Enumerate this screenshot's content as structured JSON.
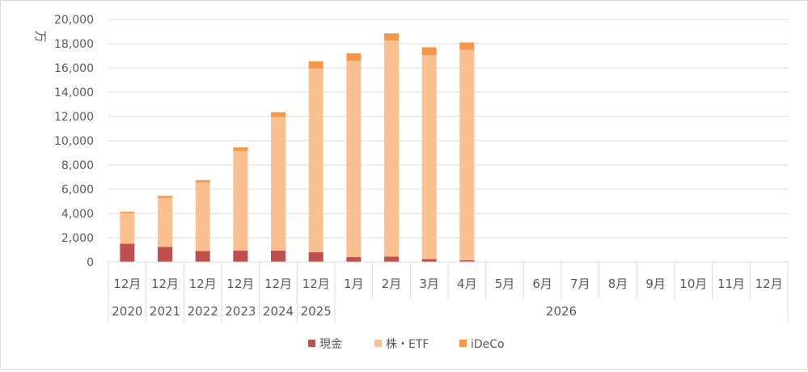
{
  "chart_data": {
    "type": "bar",
    "stacked": true,
    "title": "",
    "ylabel": "万",
    "xlabel": "",
    "ylim": [
      0,
      20000
    ],
    "yticks": [
      0,
      2000,
      4000,
      6000,
      8000,
      10000,
      12000,
      14000,
      16000,
      18000,
      20000
    ],
    "ytick_labels": [
      "0",
      "2,000",
      "4,000",
      "6,000",
      "8,000",
      "10,000",
      "12,000",
      "14,000",
      "16,000",
      "18,000",
      "20,000"
    ],
    "grid": true,
    "legend_position": "bottom",
    "categories": [
      "12月",
      "12月",
      "12月",
      "12月",
      "12月",
      "12月",
      "1月",
      "2月",
      "3月",
      "4月",
      "5月",
      "6月",
      "7月",
      "8月",
      "9月",
      "10月",
      "11月",
      "12月"
    ],
    "year_groups": [
      {
        "label": "2020",
        "span": 1
      },
      {
        "label": "2021",
        "span": 1
      },
      {
        "label": "2022",
        "span": 1
      },
      {
        "label": "2023",
        "span": 1
      },
      {
        "label": "2024",
        "span": 1
      },
      {
        "label": "2025",
        "span": 1
      },
      {
        "label": "2026",
        "span": 12
      }
    ],
    "series": [
      {
        "name": "現金",
        "color": "#c0504d",
        "values": [
          1500,
          1250,
          900,
          950,
          950,
          800,
          400,
          450,
          250,
          150,
          null,
          null,
          null,
          null,
          null,
          null,
          null,
          null
        ]
      },
      {
        "name": "株・ETF",
        "color": "#fac090",
        "values": [
          2550,
          4050,
          5650,
          8200,
          11000,
          15150,
          16200,
          17800,
          16800,
          17350,
          null,
          null,
          null,
          null,
          null,
          null,
          null,
          null
        ]
      },
      {
        "name": "iDeCo",
        "color": "#f79646",
        "values": [
          100,
          150,
          200,
          300,
          400,
          600,
          600,
          600,
          650,
          600,
          null,
          null,
          null,
          null,
          null,
          null,
          null,
          null
        ]
      }
    ]
  }
}
